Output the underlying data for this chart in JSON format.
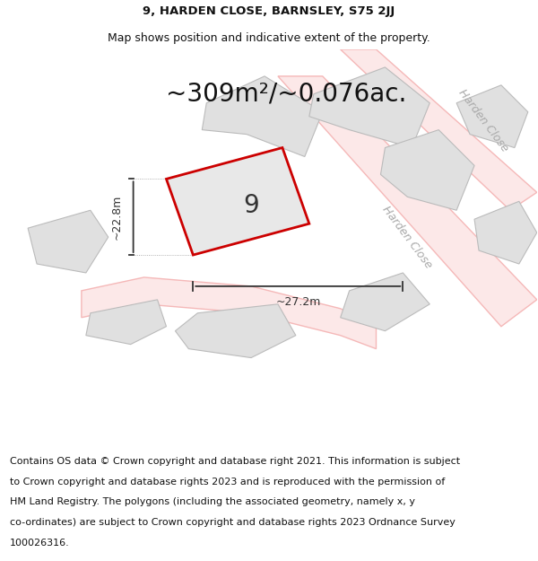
{
  "title_line1": "9, HARDEN CLOSE, BARNSLEY, S75 2JJ",
  "title_line2": "Map shows position and indicative extent of the property.",
  "area_text": "~309m²/~0.076ac.",
  "property_number": "9",
  "dim_width": "~27.2m",
  "dim_height": "~22.8m",
  "footer_text": "Contains OS data © Crown copyright and database right 2021. This information is subject to Crown copyright and database rights 2023 and is reproduced with the permission of HM Land Registry. The polygons (including the associated geometry, namely x, y co-ordinates) are subject to Crown copyright and database rights 2023 Ordnance Survey 100026316.",
  "bg_color": "#ffffff",
  "map_bg": "#ffffff",
  "property_fill": "#e8e8e8",
  "property_edge": "#cc0000",
  "neighbor_fill": "#e0e0e0",
  "neighbor_edge": "#bbbbbb",
  "road_stroke": "#f5b8b8",
  "road_fill": "#ffffff",
  "street_label": "Harden Close",
  "title_fontsize": 9.5,
  "subtitle_fontsize": 9,
  "area_fontsize": 20,
  "num_fontsize": 20,
  "dim_fontsize": 9,
  "street_fontsize": 9,
  "footer_fontsize": 8
}
